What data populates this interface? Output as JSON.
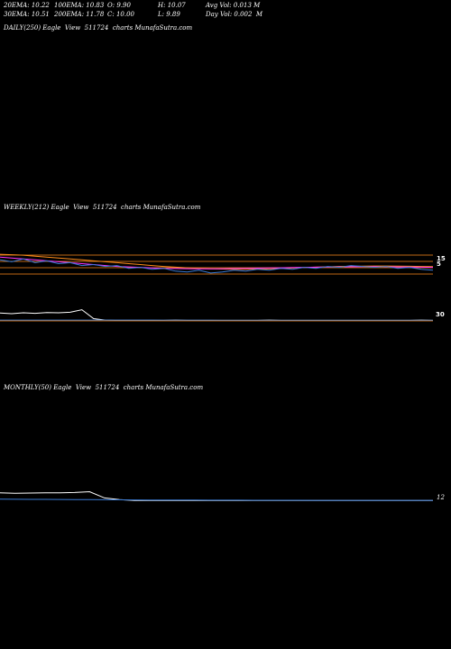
{
  "stats": {
    "row1": [
      "20EMA: 10.22",
      "100EMA: 10.83",
      "O: 9.90",
      "H: 10.07",
      "Avg Vol: 0.013 M"
    ],
    "row2": [
      "30EMA: 10.51",
      "200EMA: 11.78",
      "C: 10.00",
      "L: 9.89",
      "Day Vol: 0.002  M"
    ]
  },
  "panels": {
    "daily": {
      "caption": "DAILY(250) Eagle  View  511724  charts MunafaSutra.com"
    },
    "weekly": {
      "caption": "WEEKLY(212) Eagle  View  511724  charts MunafaSutra.com",
      "price_tick": "15",
      "volume_tick": "30"
    },
    "monthly": {
      "caption": "MONTHLY(50) Eagle  View  511724  charts MunafaSutra.com",
      "volume_tick": "12"
    }
  },
  "colors": {
    "background": "#000000",
    "price": "#3a7bd5",
    "ema_magenta": "#ff33ff",
    "ema_orange": "#ff8c1a",
    "ema_pink": "#ff99cc",
    "volume": "#ffffff",
    "avg_volume": "#3a7bd5"
  },
  "chart_data": [
    {
      "type": "line",
      "title": "DAILY(250) Eagle  View  511724  charts MunafaSutra.com",
      "series": []
    },
    {
      "type": "line",
      "title": "WEEKLY(212) Eagle  View  511724  charts MunafaSutra.com",
      "yticks": [
        "15"
      ],
      "series": [
        {
          "values": [
            16.2,
            16.0,
            16.3,
            15.9,
            16.1,
            15.8,
            15.9,
            15.6,
            15.7,
            15.5,
            15.6,
            15.3,
            15.4,
            15.2,
            15.3,
            15.0,
            14.9,
            15.1,
            14.8,
            14.9,
            15.1,
            15.0,
            15.2,
            15.1,
            15.3,
            15.2,
            15.4,
            15.3,
            15.5,
            15.4,
            15.6,
            15.5,
            15.4,
            15.5,
            15.3,
            15.4,
            15.2,
            15.1
          ]
        },
        {
          "values": [
            16.5,
            16.4,
            16.3,
            16.2,
            16.1,
            16.0,
            15.9,
            15.8,
            15.7,
            15.6,
            15.5,
            15.45,
            15.4,
            15.35,
            15.3,
            15.28,
            15.26,
            15.25,
            15.25,
            15.26,
            15.28,
            15.3,
            15.32,
            15.34,
            15.36,
            15.38,
            15.4,
            15.42,
            15.44,
            15.45,
            15.46,
            15.47,
            15.47,
            15.46,
            15.45,
            15.44,
            15.42,
            15.4
          ]
        },
        {
          "values": [
            16.8,
            16.75,
            16.7,
            16.6,
            16.5,
            16.4,
            16.3,
            16.2,
            16.1,
            16.0,
            15.9,
            15.8,
            15.7,
            15.6,
            15.5,
            15.42,
            15.36,
            15.3,
            15.25,
            15.22,
            15.2,
            15.2,
            15.22,
            15.25,
            15.3,
            15.34,
            15.38,
            15.42,
            15.46,
            15.5,
            15.52,
            15.54,
            15.55,
            15.55,
            15.54,
            15.52,
            15.5,
            15.48
          ]
        }
      ]
    },
    {
      "type": "line",
      "title": "WEEKLY volume",
      "yticks": [
        "30"
      ],
      "series": [
        {
          "values": [
            28,
            26,
            29,
            27,
            30,
            29,
            31,
            40,
            8,
            3,
            2,
            2,
            2,
            2,
            2,
            3,
            2,
            2,
            2,
            2,
            2,
            2,
            2,
            3,
            2,
            2,
            2,
            2,
            2,
            2,
            2,
            2,
            2,
            2,
            2,
            2,
            3,
            2
          ]
        },
        {
          "values": [
            3,
            3,
            3,
            3,
            3,
            3,
            3,
            3,
            3,
            3,
            3,
            3,
            3,
            2.8,
            2.6,
            2.5,
            2.4,
            2.3,
            2.2,
            2.1,
            2,
            2,
            2,
            2,
            2,
            2,
            2,
            2,
            2,
            2,
            2,
            2,
            2,
            2,
            2,
            2,
            2,
            2
          ]
        }
      ]
    },
    {
      "type": "line",
      "title": "MONTHLY(50) Eagle  View  511724  charts MunafaSutra.com",
      "yticks": [
        "12"
      ],
      "series": [
        {
          "values": [
            11,
            10.5,
            10.8,
            11.2,
            11,
            11.5,
            12.5,
            5,
            3,
            2,
            2,
            2,
            2,
            2,
            2,
            2,
            2,
            2,
            2,
            2,
            2,
            2,
            2,
            2,
            2,
            2,
            2,
            2,
            2,
            2
          ]
        },
        {
          "values": [
            3.5,
            3.4,
            3.3,
            3.2,
            3.1,
            3,
            2.9,
            2.8,
            2.7,
            2.6,
            2.5,
            2.5,
            2.4,
            2.4,
            2.3,
            2.3,
            2.3,
            2.2,
            2.2,
            2.2,
            2.2,
            2.1,
            2.1,
            2.1,
            2.1,
            2.1,
            2.1,
            2.1,
            2.1,
            2.1
          ]
        }
      ]
    }
  ]
}
